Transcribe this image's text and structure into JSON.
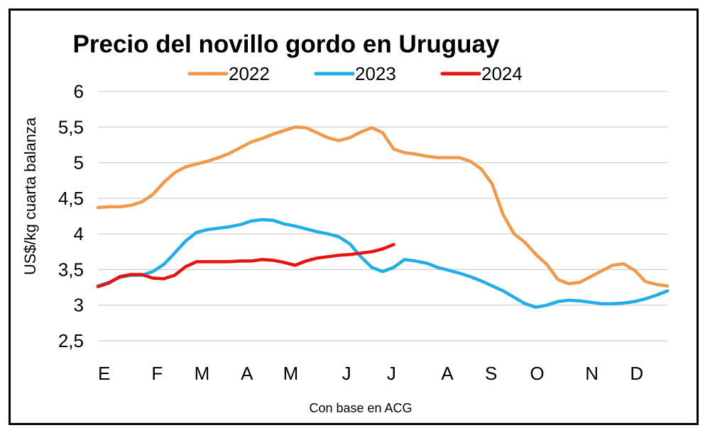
{
  "chart_data": {
    "type": "line",
    "title": "Precio del novillo gordo en Uruguay",
    "ylabel": "US$/kg cuarta balanza",
    "xlabel": "",
    "note": "Con base en ACG",
    "ylim": [
      2.5,
      6
    ],
    "yticks": [
      2.5,
      3,
      3.5,
      4,
      4.5,
      5,
      5.5,
      6
    ],
    "ytick_labels": [
      "2,5",
      "3",
      "3,5",
      "4",
      "4,5",
      "5",
      "5,5",
      "6"
    ],
    "categories": [
      "E",
      "F",
      "M",
      "A",
      "M",
      "J",
      "J",
      "A",
      "S",
      "O",
      "N",
      "D"
    ],
    "x_domain": [
      0,
      52
    ],
    "category_positions": [
      0,
      5.4,
      9.5,
      13.6,
      17.6,
      22.7,
      26.8,
      31.9,
      35.9,
      40.1,
      45.1,
      49.2
    ],
    "grid": "horizontal",
    "legend_position": "top",
    "series": [
      {
        "name": "2022",
        "color": "#F0994B",
        "x": [
          0,
          1,
          2,
          3,
          4,
          5,
          6,
          7,
          8,
          9,
          10,
          11,
          12,
          13,
          14,
          15,
          16,
          17,
          18,
          19,
          20,
          21,
          22,
          23,
          24,
          25,
          26,
          27,
          28,
          29,
          30,
          31,
          32,
          33,
          34,
          35,
          36,
          37,
          38,
          39,
          40,
          41,
          42,
          43,
          44,
          45,
          46,
          47,
          48,
          49,
          50,
          51,
          52
        ],
        "values": [
          4.37,
          4.38,
          4.38,
          4.4,
          4.45,
          4.55,
          4.72,
          4.86,
          4.94,
          4.98,
          5.02,
          5.07,
          5.13,
          5.21,
          5.29,
          5.34,
          5.4,
          5.45,
          5.5,
          5.49,
          5.42,
          5.35,
          5.31,
          5.35,
          5.43,
          5.49,
          5.42,
          5.19,
          5.14,
          5.12,
          5.09,
          5.07,
          5.07,
          5.07,
          5.02,
          4.91,
          4.7,
          4.27,
          4.0,
          3.88,
          3.71,
          3.57,
          3.36,
          3.3,
          3.32,
          3.4,
          3.48,
          3.56,
          3.58,
          3.49,
          3.33,
          3.29,
          3.27
        ]
      },
      {
        "name": "2023",
        "color": "#21AEE8",
        "x": [
          0,
          1,
          2,
          3,
          4,
          5,
          6,
          7,
          8,
          9,
          10,
          11,
          12,
          13,
          14,
          15,
          16,
          17,
          18,
          19,
          20,
          21,
          22,
          23,
          24,
          25,
          26,
          27,
          28,
          29,
          30,
          31,
          32,
          33,
          34,
          35,
          36,
          37,
          38,
          39,
          40,
          41,
          42,
          43,
          44,
          45,
          46,
          47,
          48,
          49,
          50,
          51,
          52
        ],
        "values": [
          3.27,
          3.32,
          3.39,
          3.42,
          3.42,
          3.47,
          3.57,
          3.73,
          3.9,
          4.02,
          4.06,
          4.08,
          4.1,
          4.13,
          4.18,
          4.2,
          4.19,
          4.14,
          4.11,
          4.07,
          4.03,
          4.0,
          3.96,
          3.86,
          3.68,
          3.53,
          3.47,
          3.53,
          3.64,
          3.62,
          3.59,
          3.53,
          3.49,
          3.45,
          3.4,
          3.34,
          3.27,
          3.2,
          3.11,
          3.02,
          2.97,
          3.0,
          3.05,
          3.07,
          3.06,
          3.04,
          3.02,
          3.02,
          3.03,
          3.05,
          3.09,
          3.14,
          3.2
        ]
      },
      {
        "name": "2024",
        "color": "#E8130F",
        "x": [
          0,
          1,
          2,
          3,
          4,
          5,
          6,
          7,
          8,
          9,
          10,
          11,
          12,
          13,
          14,
          15,
          16,
          17,
          18,
          19,
          20,
          21,
          22,
          23,
          24,
          25,
          26,
          27
        ],
        "values": [
          3.26,
          3.31,
          3.4,
          3.43,
          3.43,
          3.38,
          3.37,
          3.42,
          3.54,
          3.61,
          3.61,
          3.61,
          3.61,
          3.62,
          3.62,
          3.64,
          3.63,
          3.6,
          3.56,
          3.62,
          3.66,
          3.68,
          3.7,
          3.71,
          3.73,
          3.75,
          3.79,
          3.85
        ]
      }
    ]
  }
}
